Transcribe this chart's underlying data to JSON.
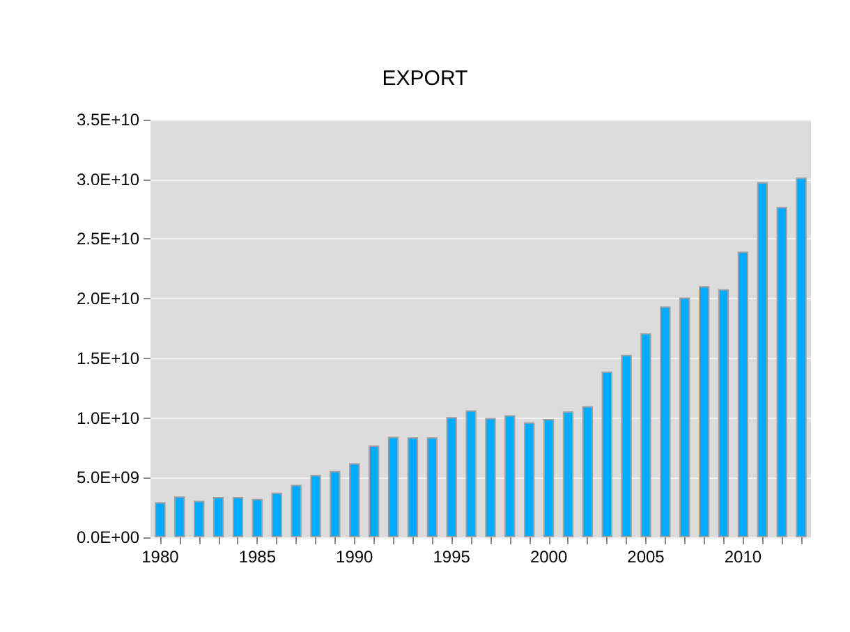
{
  "chart_data": {
    "type": "bar",
    "title": "EXPORT",
    "categories": [
      "1980",
      null,
      null,
      null,
      null,
      "1985",
      null,
      null,
      null,
      null,
      "1990",
      null,
      null,
      null,
      null,
      "1995",
      null,
      null,
      null,
      null,
      "2000",
      null,
      null,
      null,
      null,
      "2005",
      null,
      null,
      null,
      null,
      "2010",
      null,
      null,
      null
    ],
    "values": [
      2940000000.0,
      3430000000.0,
      3060000000.0,
      3390000000.0,
      3390000000.0,
      3230000000.0,
      3750000000.0,
      4400000000.0,
      5240000000.0,
      5560000000.0,
      6210000000.0,
      7700000000.0,
      8430000000.0,
      8390000000.0,
      8390000000.0,
      10080000000.0,
      10650000000.0,
      10000000000.0,
      10240000000.0,
      9640000000.0,
      9920000000.0,
      10560000000.0,
      11000000000.0,
      13900000000.0,
      15300000000.0,
      17100000000.0,
      19350000000.0,
      20100000000.0,
      21050000000.0,
      20800000000.0,
      23950000000.0,
      29760000000.0,
      27700000000.0,
      30160000000.0
    ],
    "color": "#00aaff",
    "ylim": [
      0,
      35000000000.0
    ],
    "yticks": [
      {
        "value": 0,
        "label": "0.0E+00"
      },
      {
        "value": 5000000000.0,
        "label": "5.0E+09"
      },
      {
        "value": 10000000000.0,
        "label": "1.0E+10"
      },
      {
        "value": 15000000000.0,
        "label": "1.5E+10"
      },
      {
        "value": 20000000000.0,
        "label": "2.0E+10"
      },
      {
        "value": 25000000000.0,
        "label": "2.5E+10"
      },
      {
        "value": 30000000000.0,
        "label": "3.0E+10"
      },
      {
        "value": 35000000000.0,
        "label": "3.5E+10"
      }
    ],
    "grid": "y"
  }
}
